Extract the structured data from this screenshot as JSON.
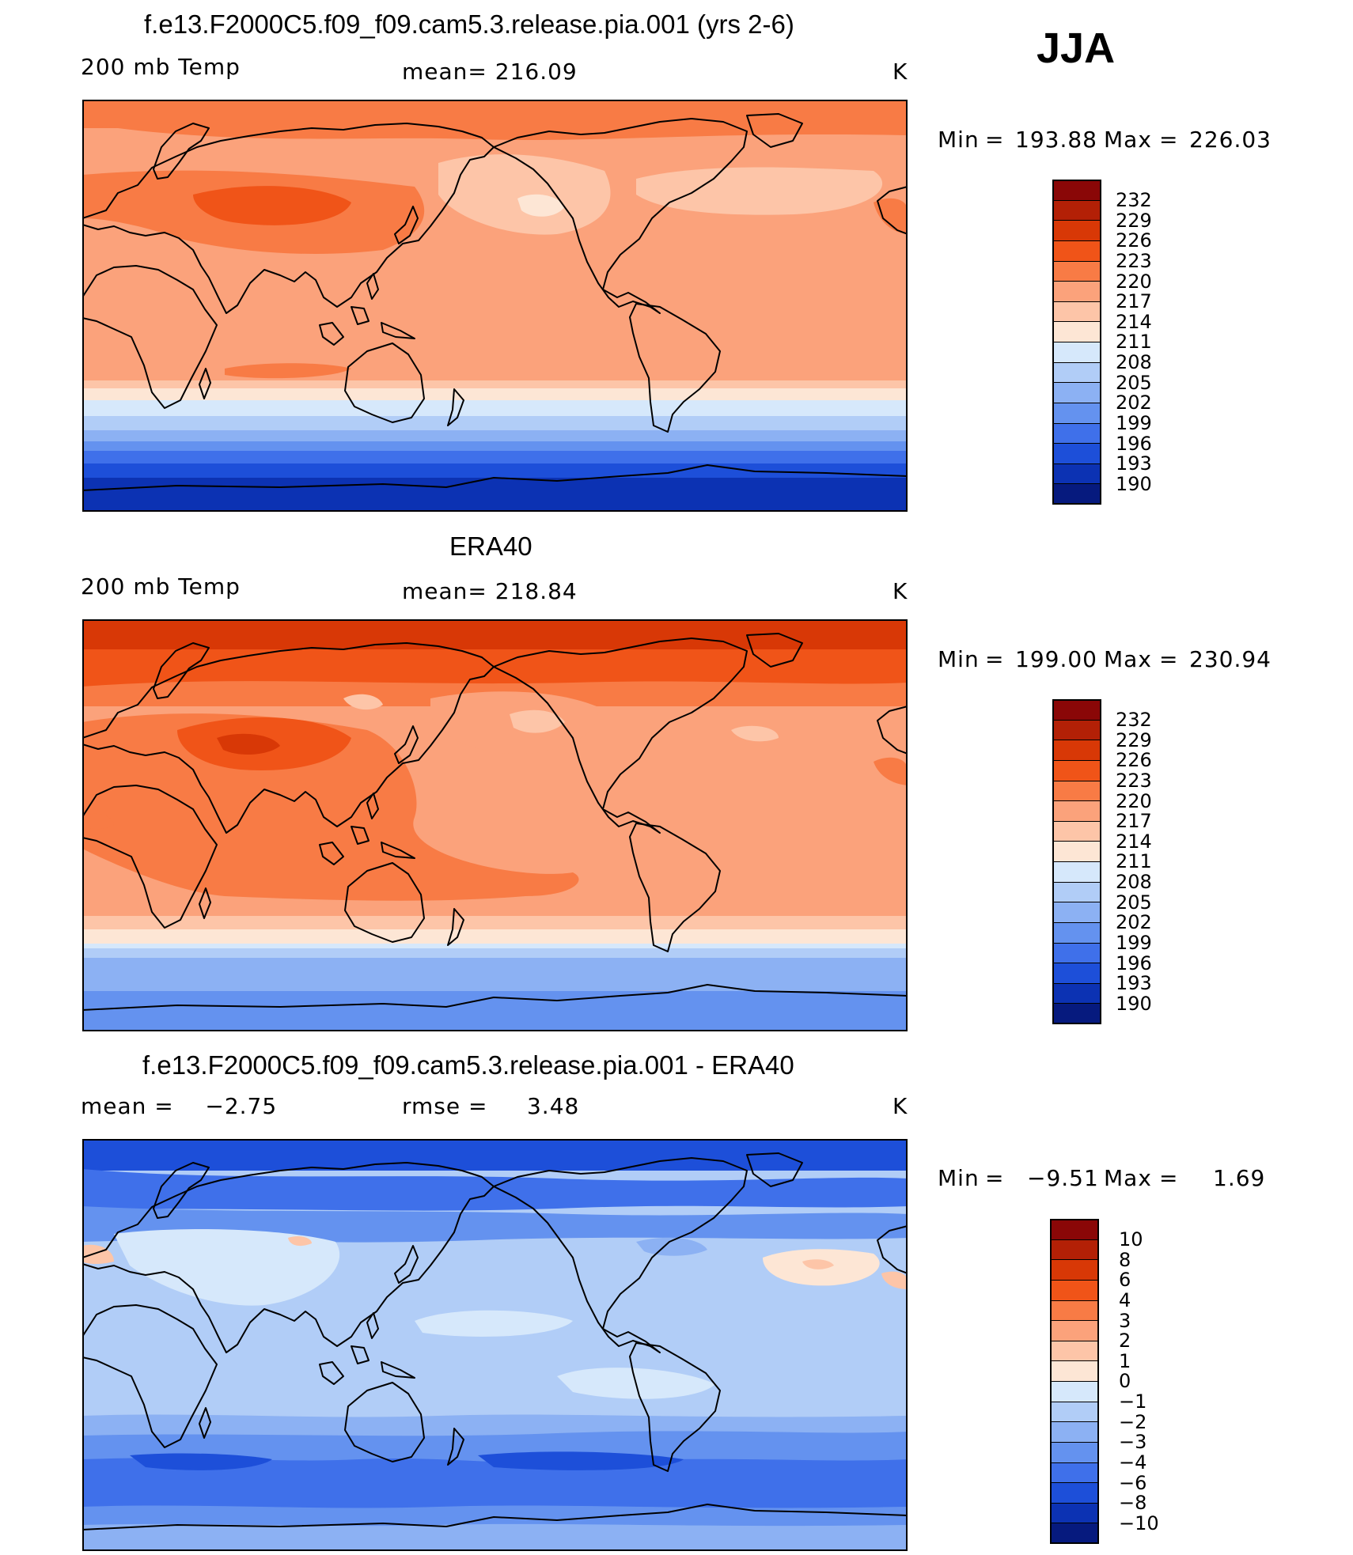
{
  "season": "JJA",
  "panels": [
    {
      "title": "f.e13.F2000C5.f09_f09.cam5.3.release.pia.001 (yrs 2-6)",
      "left_label": "200 mb Temp",
      "mid_label": "mean= 216.09",
      "units": "K",
      "min_label": "Min",
      "min_value": "193.88",
      "max_label": "Max",
      "max_value": "226.03",
      "colorbar": {
        "levels": [
          "232",
          "229",
          "226",
          "223",
          "220",
          "217",
          "214",
          "211",
          "208",
          "205",
          "202",
          "199",
          "196",
          "193",
          "190"
        ],
        "colors": [
          "#8a0707",
          "#b32006",
          "#d83806",
          "#f05418",
          "#f87b45",
          "#fba27b",
          "#fdc5a8",
          "#fde6d5",
          "#d6e8fb",
          "#b1cdf7",
          "#8cb1f3",
          "#6492ef",
          "#3f70ea",
          "#1d4fd9",
          "#0c32b3",
          "#061a7e"
        ]
      }
    },
    {
      "title": "ERA40",
      "left_label": "200 mb Temp",
      "mid_label": "mean= 218.84",
      "units": "K",
      "min_label": "Min",
      "min_value": "199.00",
      "max_label": "Max",
      "max_value": "230.94",
      "colorbar": {
        "levels": [
          "232",
          "229",
          "226",
          "223",
          "220",
          "217",
          "214",
          "211",
          "208",
          "205",
          "202",
          "199",
          "196",
          "193",
          "190"
        ],
        "colors": [
          "#8a0707",
          "#b32006",
          "#d83806",
          "#f05418",
          "#f87b45",
          "#fba27b",
          "#fdc5a8",
          "#fde6d5",
          "#d6e8fb",
          "#b1cdf7",
          "#8cb1f3",
          "#6492ef",
          "#3f70ea",
          "#1d4fd9",
          "#0c32b3",
          "#061a7e"
        ]
      }
    },
    {
      "title": "f.e13.F2000C5.f09_f09.cam5.3.release.pia.001 - ERA40",
      "left_label": "mean =    −2.75",
      "mid_label": "rmse =     3.48",
      "units": "K",
      "min_label": "Min",
      "min_value": "−9.51",
      "max_label": "Max",
      "max_value": "1.69",
      "colorbar": {
        "levels": [
          "10",
          "8",
          "6",
          "4",
          "3",
          "2",
          "1",
          "0",
          "−1",
          "−2",
          "−3",
          "−4",
          "−6",
          "−8",
          "−10"
        ],
        "colors": [
          "#8a0707",
          "#b32006",
          "#d83806",
          "#f05418",
          "#f87b45",
          "#fba27b",
          "#fdc5a8",
          "#fde6d5",
          "#d6e8fb",
          "#b1cdf7",
          "#8cb1f3",
          "#6492ef",
          "#3f70ea",
          "#1d4fd9",
          "#0c32b3",
          "#061a7e"
        ]
      }
    }
  ]
}
